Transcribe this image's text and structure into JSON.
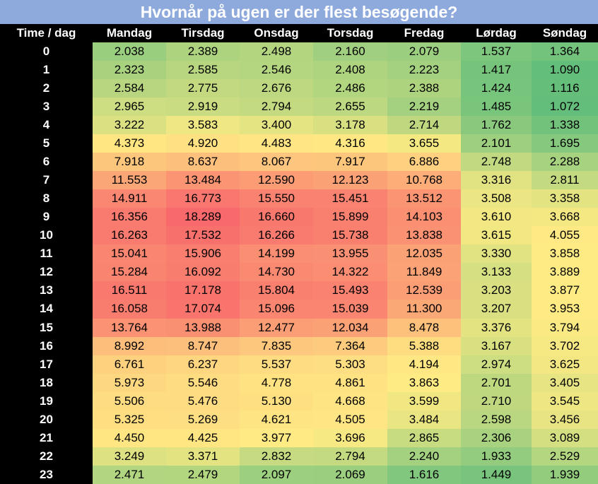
{
  "chart_data": {
    "type": "heatmap",
    "title": "Hvornår på ugen er der flest besøgende?",
    "corner_label": "Time / dag",
    "columns": [
      "Mandag",
      "Tirsdag",
      "Onsdag",
      "Torsdag",
      "Fredag",
      "Lørdag",
      "Søndag"
    ],
    "rows": [
      "0",
      "1",
      "2",
      "3",
      "4",
      "5",
      "6",
      "7",
      "8",
      "9",
      "10",
      "11",
      "12",
      "13",
      "14",
      "15",
      "16",
      "17",
      "18",
      "19",
      "20",
      "21",
      "22",
      "23"
    ],
    "values": [
      [
        "2.038",
        "2.389",
        "2.498",
        "2.160",
        "2.079",
        "1.537",
        "1.364"
      ],
      [
        "2.323",
        "2.585",
        "2.546",
        "2.408",
        "2.223",
        "1.417",
        "1.090"
      ],
      [
        "2.584",
        "2.775",
        "2.676",
        "2.486",
        "2.388",
        "1.424",
        "1.116"
      ],
      [
        "2.965",
        "2.919",
        "2.794",
        "2.655",
        "2.219",
        "1.485",
        "1.072"
      ],
      [
        "3.222",
        "3.583",
        "3.400",
        "3.178",
        "2.714",
        "1.762",
        "1.338"
      ],
      [
        "4.373",
        "4.920",
        "4.483",
        "4.316",
        "3.655",
        "2.101",
        "1.695"
      ],
      [
        "7.918",
        "8.637",
        "8.067",
        "7.917",
        "6.886",
        "2.748",
        "2.288"
      ],
      [
        "11.553",
        "13.484",
        "12.590",
        "12.123",
        "10.768",
        "3.316",
        "2.811"
      ],
      [
        "14.911",
        "16.773",
        "15.550",
        "15.451",
        "13.512",
        "3.508",
        "3.358"
      ],
      [
        "16.356",
        "18.289",
        "16.660",
        "15.899",
        "14.103",
        "3.610",
        "3.668"
      ],
      [
        "16.263",
        "17.532",
        "16.266",
        "15.738",
        "13.838",
        "3.615",
        "4.055"
      ],
      [
        "15.041",
        "15.906",
        "14.199",
        "13.955",
        "12.035",
        "3.330",
        "3.858"
      ],
      [
        "15.284",
        "16.092",
        "14.730",
        "14.322",
        "11.849",
        "3.133",
        "3.889"
      ],
      [
        "16.511",
        "17.178",
        "15.804",
        "15.493",
        "12.539",
        "3.203",
        "3.877"
      ],
      [
        "16.058",
        "17.074",
        "15.096",
        "15.039",
        "11.300",
        "3.207",
        "3.953"
      ],
      [
        "13.764",
        "13.988",
        "12.477",
        "12.034",
        "8.478",
        "3.376",
        "3.794"
      ],
      [
        "8.992",
        "8.747",
        "7.835",
        "7.364",
        "5.388",
        "3.167",
        "3.702"
      ],
      [
        "6.761",
        "6.237",
        "5.537",
        "5.303",
        "4.194",
        "2.974",
        "3.625"
      ],
      [
        "5.973",
        "5.546",
        "4.778",
        "4.861",
        "3.863",
        "2.701",
        "3.405"
      ],
      [
        "5.506",
        "5.476",
        "5.130",
        "4.668",
        "3.599",
        "2.710",
        "3.545"
      ],
      [
        "5.325",
        "5.269",
        "4.621",
        "4.505",
        "3.484",
        "2.598",
        "3.456"
      ],
      [
        "4.450",
        "4.425",
        "3.977",
        "3.696",
        "2.865",
        "2.306",
        "3.089"
      ],
      [
        "3.249",
        "3.371",
        "2.832",
        "2.794",
        "2.240",
        "1.933",
        "2.529"
      ],
      [
        "2.471",
        "2.479",
        "2.097",
        "2.069",
        "1.616",
        "1.449",
        "1.939"
      ]
    ],
    "color_scale": {
      "low": "#63be7b",
      "mid": "#ffeb84",
      "high": "#f8696b"
    }
  }
}
